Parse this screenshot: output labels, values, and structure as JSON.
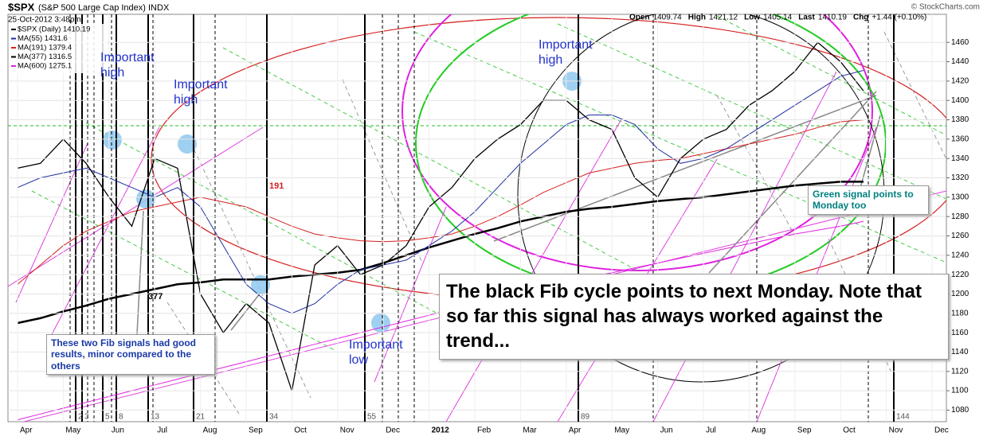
{
  "chart_data": {
    "type": "line",
    "title": "$SPX",
    "subtitle": "(S&P 500 Large Cap Index) INDX",
    "date": "25-Oct-2012 3:48pm",
    "source": "© StockCharts.com",
    "quote": [
      {
        "label": "Open",
        "value": 1409.74
      },
      {
        "label": "High",
        "value": 1421.12
      },
      {
        "label": "Low",
        "value": 1405.14
      },
      {
        "label": "Last",
        "value": 1410.19
      },
      {
        "label": "Chg",
        "value": "+1.44 (+0.10%)"
      }
    ],
    "categories": [
      "Apr",
      null,
      "May",
      null,
      "Jun",
      null,
      "Jul",
      null,
      "Aug",
      null,
      "Sep",
      null,
      "Oct",
      null,
      "Nov",
      null,
      "Dec",
      null,
      "2012",
      null,
      "Feb",
      null,
      "Mar",
      null,
      "Apr",
      null,
      "May",
      null,
      "Jun",
      null,
      "Jul",
      null,
      "Aug",
      null,
      "Sep",
      null,
      "Oct",
      null,
      "Nov",
      null,
      "Dec",
      null
    ],
    "series": [
      {
        "name": "$SPX (Daily) 1410.19",
        "color": "#000000",
        "width": 1.3,
        "values": [
          1330,
          1335,
          1360,
          1335,
          1300,
          1270,
          1340,
          1330,
          1200,
          1160,
          1190,
          1170,
          1100,
          1230,
          1250,
          1220,
          1230,
          1250,
          1290,
          1310,
          1340,
          1360,
          1375,
          1400,
          1400,
          1380,
          1370,
          1320,
          1300,
          1340,
          1360,
          1370,
          1395,
          1410,
          1430,
          1460,
          1440,
          1410,
          null,
          null,
          null,
          null
        ]
      },
      {
        "name": "MA(55) 1431.6",
        "color": "#1f2f9f",
        "width": 1,
        "values": [
          1310,
          1320,
          1325,
          1330,
          1320,
          1310,
          1300,
          1310,
          1290,
          1250,
          1210,
          1190,
          1180,
          1190,
          1210,
          1225,
          1230,
          1235,
          1250,
          1265,
          1285,
          1310,
          1335,
          1355,
          1375,
          1385,
          1385,
          1375,
          1350,
          1335,
          1340,
          1350,
          1365,
          1380,
          1395,
          1410,
          1425,
          1431,
          null,
          null,
          null,
          null
        ]
      },
      {
        "name": "MA(191) 1379.4",
        "color": "#d42020",
        "width": 1,
        "values": [
          1210,
          1230,
          1250,
          1265,
          1275,
          1285,
          1290,
          1295,
          1300,
          1295,
          1290,
          1280,
          1270,
          1262,
          1258,
          1255,
          1254,
          1255,
          1258,
          1262,
          1270,
          1280,
          1292,
          1305,
          1315,
          1325,
          1330,
          1335,
          1338,
          1340,
          1345,
          1350,
          1355,
          1360,
          1365,
          1372,
          1378,
          1380,
          null,
          null,
          null,
          null
        ]
      },
      {
        "name": "MA(377) 1316.5",
        "color": "#000000",
        "width": 2.5,
        "values": [
          1170,
          1175,
          1182,
          1188,
          1195,
          1200,
          1205,
          1210,
          1212,
          1215,
          1215,
          1215,
          1218,
          1220,
          1222,
          1225,
          1232,
          1240,
          1248,
          1255,
          1262,
          1268,
          1275,
          1280,
          1285,
          1288,
          1290,
          1293,
          1296,
          1298,
          1300,
          1303,
          1306,
          1309,
          1312,
          1314,
          1316,
          1316,
          null,
          null,
          null,
          null
        ]
      },
      {
        "name": "MA(600) 1275.1",
        "color": "#e020e0",
        "width": 1,
        "values": [
          1070,
          1076,
          1082,
          1088,
          1094,
          1100,
          1106,
          1112,
          1118,
          1124,
          1130,
          1136,
          1142,
          1148,
          1154,
          1160,
          1166,
          1172,
          1178,
          1184,
          1190,
          1196,
          1202,
          1207,
          1212,
          1217,
          1222,
          1227,
          1232,
          1237,
          1242,
          1247,
          1252,
          1257,
          1262,
          1266,
          1270,
          1275,
          null,
          null,
          null,
          null
        ]
      }
    ],
    "ylim": [
      1068,
      1489
    ],
    "yticks": [
      1080,
      1100,
      1120,
      1140,
      1160,
      1180,
      1200,
      1220,
      1240,
      1260,
      1280,
      1300,
      1320,
      1340,
      1360,
      1380,
      1400,
      1420,
      1440,
      1460
    ],
    "grid": true,
    "cycle_labels": [
      "2",
      "3",
      "5",
      "8",
      "13",
      "21",
      "34",
      "55",
      "89",
      "144"
    ],
    "annotations": [
      "Important high",
      "Important high",
      "Important high",
      "Important low",
      "191",
      "377",
      "These two Fib signals had  good results, minor compared to the others",
      "Green signal points to Monday too",
      "The black Fib cycle points to next Monday. Note that so far this signal has always worked against the trend..."
    ]
  }
}
